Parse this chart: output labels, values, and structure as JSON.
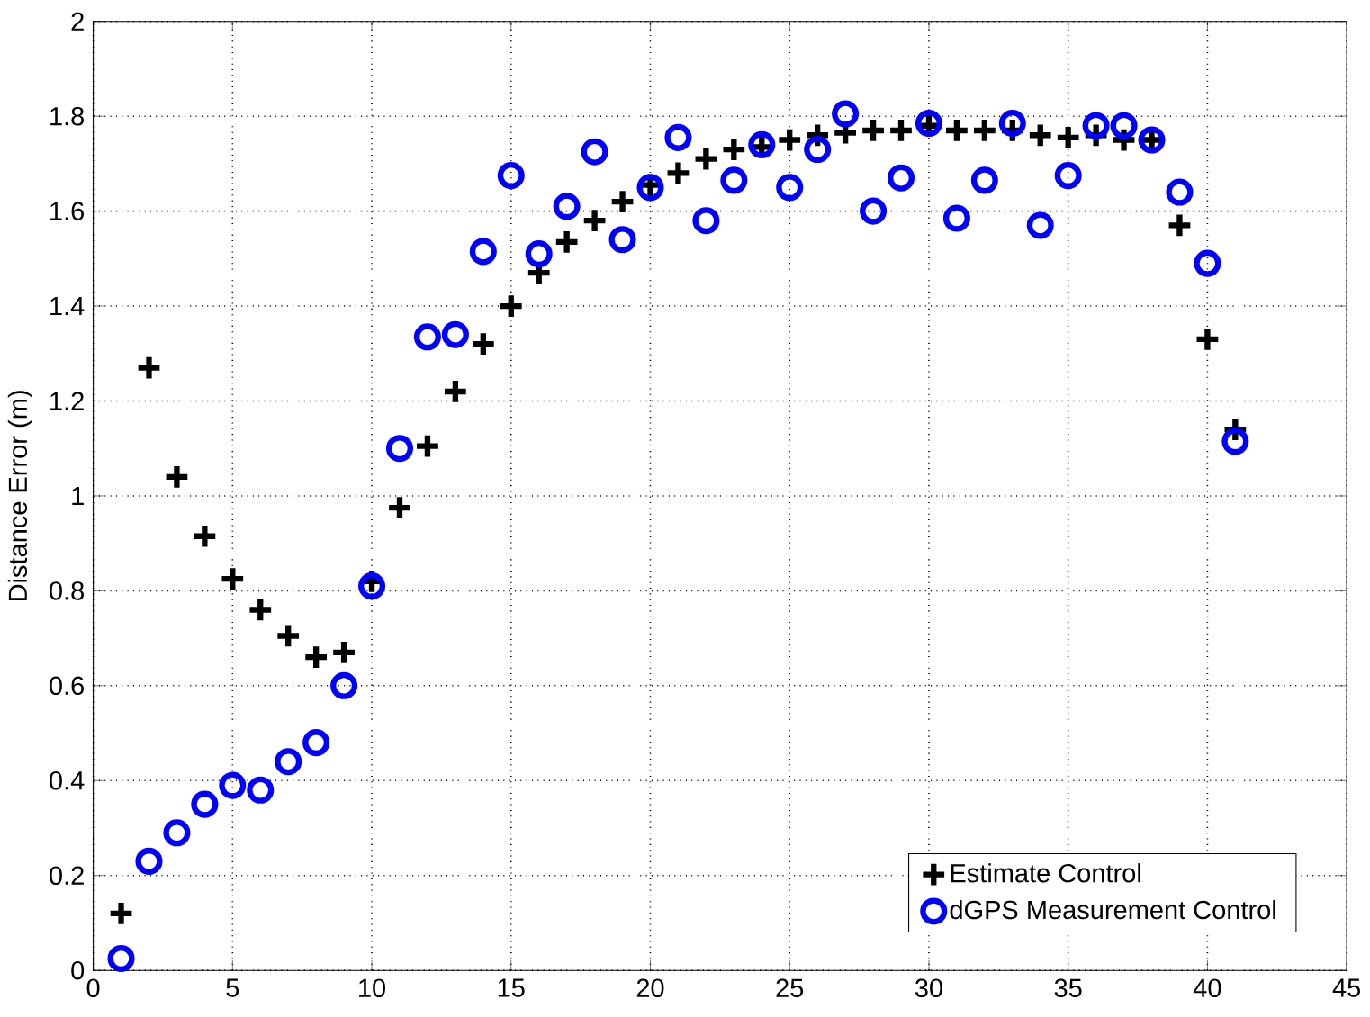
{
  "chart_data": {
    "type": "scatter",
    "ylabel": "Distance Error (m)",
    "x": [
      1,
      2,
      3,
      4,
      5,
      6,
      7,
      8,
      9,
      10,
      11,
      12,
      13,
      14,
      15,
      16,
      17,
      18,
      19,
      20,
      21,
      22,
      23,
      24,
      25,
      26,
      27,
      28,
      29,
      30,
      31,
      32,
      33,
      34,
      35,
      36,
      37,
      38,
      39,
      40,
      41
    ],
    "series": [
      {
        "name": "Estimate Control",
        "color": "#000000",
        "marker": "cross",
        "values": [
          0.12,
          1.27,
          1.04,
          0.915,
          0.825,
          0.76,
          0.705,
          0.66,
          0.67,
          0.82,
          0.975,
          1.105,
          1.22,
          1.32,
          1.4,
          1.47,
          1.535,
          1.58,
          1.62,
          1.655,
          1.68,
          1.71,
          1.73,
          1.735,
          1.75,
          1.76,
          1.765,
          1.77,
          1.77,
          1.78,
          1.77,
          1.77,
          1.77,
          1.76,
          1.755,
          1.76,
          1.75,
          1.75,
          1.57,
          1.33,
          1.14
        ]
      },
      {
        "name": "dGPS Measurement Control",
        "color": "#0000ff",
        "marker": "circle",
        "values": [
          0.025,
          0.23,
          0.29,
          0.35,
          0.39,
          0.38,
          0.44,
          0.48,
          0.6,
          0.81,
          1.1,
          1.335,
          1.34,
          1.515,
          1.675,
          1.51,
          1.61,
          1.725,
          1.54,
          1.65,
          1.755,
          1.58,
          1.665,
          1.74,
          1.65,
          1.73,
          1.805,
          1.6,
          1.67,
          1.785,
          1.585,
          1.665,
          1.785,
          1.57,
          1.675,
          1.78,
          1.78,
          1.75,
          1.64,
          1.49,
          1.115
        ]
      }
    ],
    "xlim": [
      0,
      45
    ],
    "xticks": [
      0,
      5,
      10,
      15,
      20,
      25,
      30,
      35,
      40,
      45
    ],
    "ylim": [
      0,
      2
    ],
    "yticks": [
      0,
      0.2,
      0.4,
      0.6,
      0.8,
      1,
      1.2,
      1.4,
      1.6,
      1.8,
      2
    ],
    "grid": true,
    "legend": "bottom right"
  }
}
